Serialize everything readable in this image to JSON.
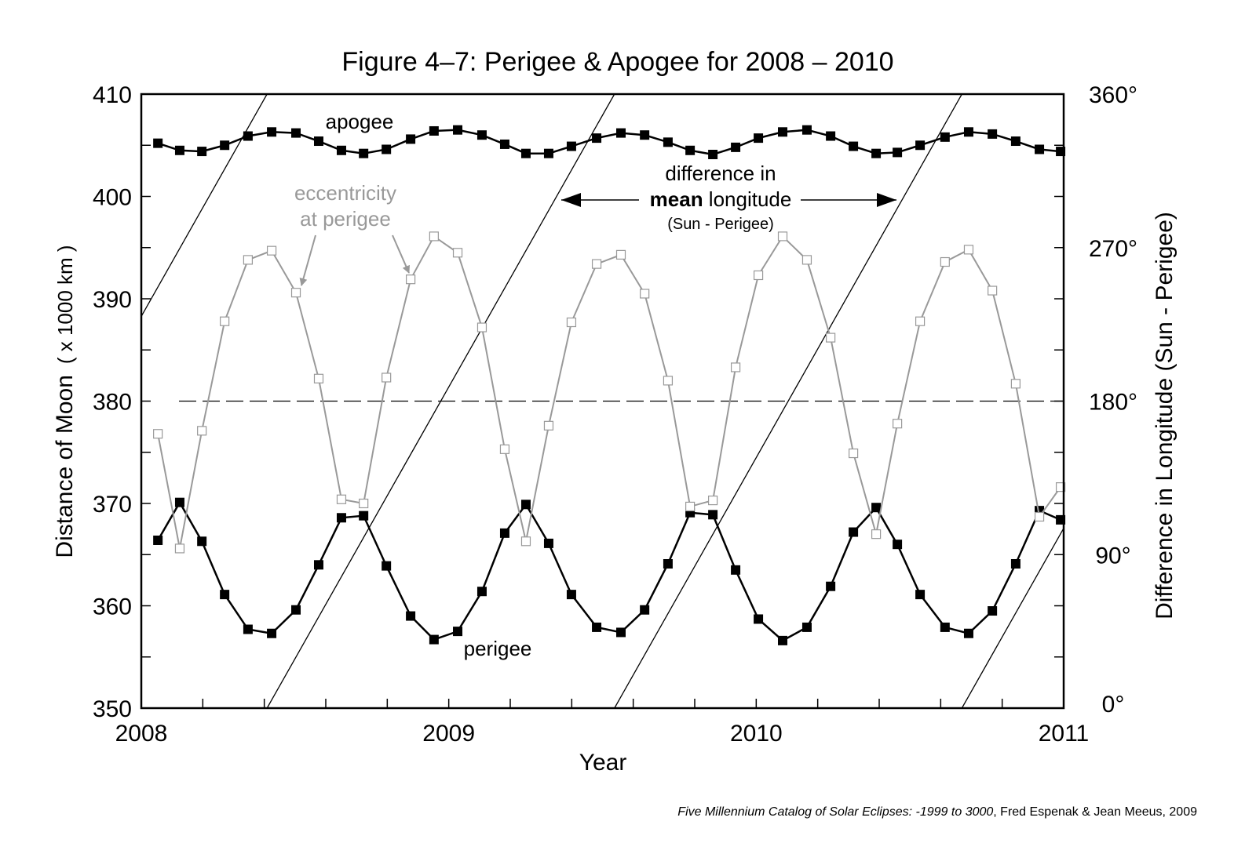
{
  "chart_data": {
    "type": "line",
    "title": "Figure 4–7:  Perigee & Apogee for 2008 – 2010",
    "xlabel": "Year",
    "ylabel": "Distance of Moon",
    "ylabel_units": "( x 1000 km )",
    "y2label": "Difference in Longitude (Sun - Perigee)",
    "xlim": [
      2008,
      2011
    ],
    "ylim": [
      350,
      410
    ],
    "y2lim": [
      0,
      360
    ],
    "x_ticks": [
      "2008",
      "2009",
      "2010",
      "2011"
    ],
    "y_ticks": [
      "350",
      "360",
      "370",
      "380",
      "390",
      "400",
      "410"
    ],
    "y2_ticks": [
      "0°",
      "90°",
      "180°",
      "270°",
      "360°"
    ],
    "x": [
      2008.054,
      2008.125,
      2008.197,
      2008.271,
      2008.347,
      2008.424,
      2008.503,
      2008.577,
      2008.651,
      2008.723,
      2008.797,
      2008.876,
      2008.952,
      2009.029,
      2009.108,
      2009.182,
      2009.251,
      2009.325,
      2009.399,
      2009.481,
      2009.56,
      2009.637,
      2009.713,
      2009.785,
      2009.859,
      2009.933,
      2010.007,
      2010.086,
      2010.165,
      2010.242,
      2010.316,
      2010.39,
      2010.459,
      2010.533,
      2010.614,
      2010.691,
      2010.768,
      2010.844,
      2010.921,
      2010.99
    ],
    "series": [
      {
        "name": "apogee",
        "color": "#000000",
        "marker": "filled-square",
        "values": [
          405.2,
          404.5,
          404.4,
          405.0,
          405.9,
          406.3,
          406.2,
          405.4,
          404.5,
          404.2,
          404.6,
          405.6,
          406.4,
          406.5,
          406.0,
          405.1,
          404.2,
          404.2,
          404.9,
          405.7,
          406.2,
          406.0,
          405.3,
          404.5,
          404.1,
          404.8,
          405.7,
          406.3,
          406.5,
          405.9,
          404.9,
          404.2,
          404.3,
          405.0,
          405.8,
          406.3,
          406.1,
          405.4,
          404.6,
          404.4
        ]
      },
      {
        "name": "perigee",
        "color": "#000000",
        "marker": "filled-square",
        "values": [
          366.4,
          370.1,
          366.3,
          361.1,
          357.7,
          357.3,
          359.6,
          364.0,
          368.6,
          368.8,
          363.9,
          359.0,
          356.7,
          357.5,
          361.4,
          367.1,
          369.9,
          366.1,
          361.1,
          357.9,
          357.4,
          359.6,
          364.1,
          369.1,
          368.9,
          363.5,
          358.7,
          356.6,
          357.9,
          361.9,
          367.2,
          369.6,
          366.0,
          361.1,
          357.9,
          357.3,
          359.5,
          364.1,
          369.3,
          368.4
        ]
      },
      {
        "name": "eccentricity at perigee",
        "color": "#999999",
        "marker": "open-square",
        "values": [
          376.8,
          365.6,
          377.1,
          387.8,
          393.8,
          394.7,
          390.6,
          382.2,
          370.4,
          370.0,
          382.3,
          391.9,
          396.1,
          394.5,
          387.2,
          375.3,
          366.3,
          377.6,
          387.7,
          393.4,
          394.3,
          390.5,
          382.0,
          369.7,
          370.3,
          383.3,
          392.3,
          396.1,
          393.8,
          386.2,
          374.9,
          367.0,
          377.8,
          387.8,
          393.6,
          394.8,
          390.8,
          381.7,
          368.7,
          371.6
        ]
      }
    ],
    "mean_longitude_difference": {
      "description_axis": "right",
      "zero_crossing_year": 2008.409,
      "period_years": 1.13
    },
    "reference_line_deg": 180,
    "annotations": {
      "apogee": "apogee",
      "perigee": "perigee",
      "ecc_line1": "eccentricity",
      "ecc_line2": "at perigee",
      "diff_line1": "difference in",
      "diff_bold": "mean",
      "diff_rest": " longitude",
      "diff_line3": "(Sun - Perigee)"
    },
    "credit_italic": "Five Millennium Catalog of Solar Eclipses: -1999 to 3000",
    "credit_rest": ", Fred Espenak & Jean Meeus, 2009"
  }
}
